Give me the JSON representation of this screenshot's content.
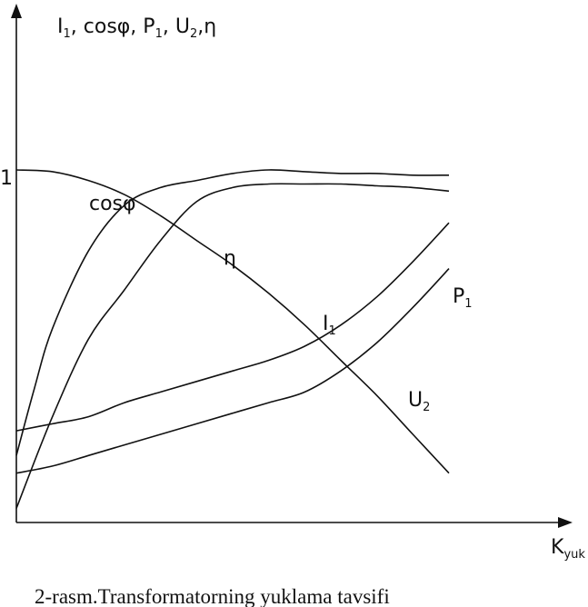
{
  "chart_data": {
    "type": "line",
    "y_axis_title": {
      "text": "I",
      "sub": "1",
      "rest": ", cosφ, P",
      "sub2": "1",
      "rest2": ", U",
      "sub3": "2",
      "rest3": ",η"
    },
    "x_axis_title": {
      "text": "K",
      "sub": "yuk"
    },
    "y_tick_label": "1",
    "xlim": [
      0,
      1.2
    ],
    "ylim": [
      0,
      1.3
    ],
    "grid": false,
    "series": [
      {
        "name": "η",
        "x": [
          0.0,
          0.05,
          0.1,
          0.2,
          0.3,
          0.4,
          0.5,
          0.6,
          0.7,
          0.8,
          0.9,
          1.0,
          1.1,
          1.2
        ],
        "y": [
          0.19,
          0.38,
          0.55,
          0.77,
          0.9,
          0.95,
          0.97,
          0.99,
          1.0,
          0.995,
          0.99,
          0.99,
          0.985,
          0.985
        ]
      },
      {
        "name": "cosφ",
        "x": [
          0.0,
          0.1,
          0.2,
          0.3,
          0.4,
          0.5,
          0.6,
          0.7,
          0.8,
          0.9,
          1.0,
          1.1,
          1.2
        ],
        "y": [
          0.04,
          0.3,
          0.52,
          0.66,
          0.8,
          0.91,
          0.95,
          0.96,
          0.96,
          0.96,
          0.955,
          0.95,
          0.94
        ]
      },
      {
        "name": "P₁",
        "x": [
          0.0,
          0.1,
          0.2,
          0.3,
          0.4,
          0.5,
          0.6,
          0.7,
          0.8,
          0.9,
          1.0,
          1.1,
          1.2
        ],
        "y": [
          0.26,
          0.28,
          0.3,
          0.34,
          0.37,
          0.4,
          0.43,
          0.46,
          0.5,
          0.56,
          0.64,
          0.74,
          0.85
        ]
      },
      {
        "name": "U₂",
        "x": [
          0.0,
          0.1,
          0.2,
          0.3,
          0.4,
          0.5,
          0.6,
          0.7,
          0.8,
          0.9,
          1.0,
          1.1,
          1.2
        ],
        "y": [
          1.0,
          0.995,
          0.97,
          0.93,
          0.87,
          0.8,
          0.73,
          0.65,
          0.56,
          0.46,
          0.36,
          0.25,
          0.14
        ]
      },
      {
        "name": "I₁",
        "x": [
          0.0,
          0.1,
          0.2,
          0.3,
          0.4,
          0.5,
          0.6,
          0.7,
          0.8,
          0.9,
          1.0,
          1.1,
          1.2
        ],
        "y": [
          0.14,
          0.16,
          0.19,
          0.22,
          0.25,
          0.28,
          0.31,
          0.34,
          0.37,
          0.43,
          0.51,
          0.61,
          0.72
        ]
      }
    ],
    "labels": [
      {
        "series": "cosφ",
        "text": "cosφ"
      },
      {
        "series": "η",
        "text": "η"
      },
      {
        "series": "P₁",
        "text": "P",
        "sub": "1"
      },
      {
        "series": "I₁",
        "text": "I",
        "sub": "1"
      },
      {
        "series": "U₂",
        "text": "U",
        "sub": "2"
      }
    ]
  },
  "caption": "2-rasm.Transformatorning yuklama tavsifi"
}
